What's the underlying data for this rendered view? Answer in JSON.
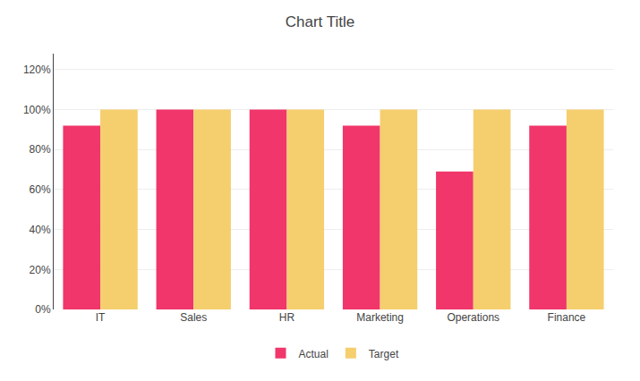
{
  "chart_data": {
    "type": "bar",
    "title": "Chart Title",
    "categories": [
      "IT",
      "Sales",
      "HR",
      "Marketing",
      "Operations",
      "Finance"
    ],
    "series": [
      {
        "name": "Actual",
        "color": "#F0366A",
        "values": [
          0.92,
          1.0,
          1.0,
          0.92,
          0.69,
          0.92
        ]
      },
      {
        "name": "Target",
        "color": "#F5CE6E",
        "values": [
          1.0,
          1.0,
          1.0,
          1.0,
          1.0,
          1.0
        ]
      }
    ],
    "ylim": [
      0,
      1.28
    ],
    "yticks": [
      {
        "value": 0,
        "label": "0%"
      },
      {
        "value": 0.2,
        "label": "20%"
      },
      {
        "value": 0.4,
        "label": "40%"
      },
      {
        "value": 0.6,
        "label": "60%"
      },
      {
        "value": 0.8,
        "label": "80%"
      },
      {
        "value": 1.0,
        "label": "100%"
      },
      {
        "value": 1.2,
        "label": "120%"
      }
    ],
    "grid": true,
    "legend": "bottom"
  }
}
